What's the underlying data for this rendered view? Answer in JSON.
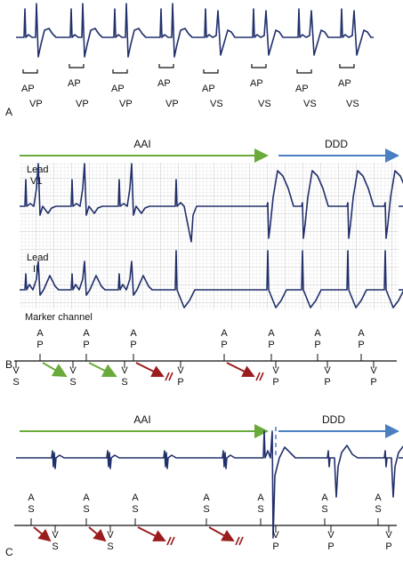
{
  "panel_a": {
    "label": "A",
    "atrial_markers": [
      "AP",
      "AP",
      "AP",
      "AP",
      "AP",
      "AP",
      "AP",
      "AP"
    ],
    "ventricular_markers": [
      "VP",
      "VP",
      "VP",
      "VP",
      "VS",
      "VS",
      "VS",
      "VS"
    ]
  },
  "panel_b": {
    "label": "B",
    "mode_left": "AAI",
    "mode_right": "DDD",
    "lead_1": [
      "Lead",
      "V1"
    ],
    "lead_2": [
      "Lead",
      "II"
    ],
    "marker_channel": "Marker channel",
    "atrial_markers": [
      [
        "A",
        "P"
      ],
      [
        "A",
        "P"
      ],
      [
        "A",
        "P"
      ],
      [
        "A",
        "P"
      ],
      [
        "A",
        "P"
      ],
      [
        "A",
        "P"
      ],
      [
        "A",
        "P"
      ]
    ],
    "ventricular_markers": [
      [
        "V",
        "S"
      ],
      [
        "V",
        "S"
      ],
      [
        "V",
        "S"
      ],
      [
        "V",
        "P"
      ],
      [
        "V",
        "P"
      ],
      [
        "V",
        "P"
      ],
      [
        "V",
        "P"
      ]
    ]
  },
  "panel_c": {
    "label": "C",
    "mode_left": "AAI",
    "mode_right": "DDD",
    "atrial_markers": [
      [
        "A",
        "S"
      ],
      [
        "A",
        "S"
      ],
      [
        "A",
        "S"
      ],
      [
        "A",
        "S"
      ],
      [
        "A",
        "S"
      ],
      [
        "A",
        "S"
      ],
      [
        "A",
        "S"
      ]
    ],
    "ventricular_markers": [
      [
        "V",
        "S"
      ],
      [
        "V",
        "S"
      ],
      [
        "V",
        "P"
      ],
      [
        "V",
        "P"
      ],
      [
        "V",
        "P"
      ]
    ]
  }
}
